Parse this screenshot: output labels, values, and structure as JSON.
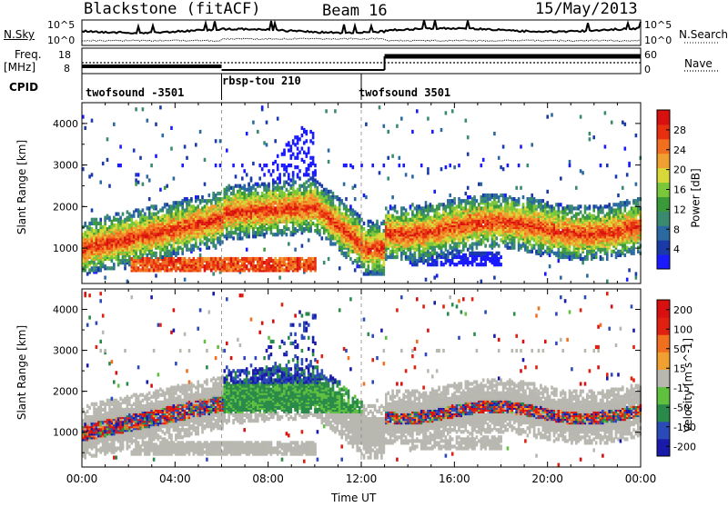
{
  "header": {
    "station": "Blackstone (fitACF)",
    "beam": "Beam 16",
    "date": "15/May/2013"
  },
  "noise_panel": {
    "left_label": "N.Sky",
    "right_label": "N.Search",
    "ticks": [
      "10^5",
      "10^0"
    ]
  },
  "freq_panel": {
    "freq_label": "Freq.",
    "freq_unit": "[MHz]",
    "left_ticks": [
      "18",
      "8"
    ],
    "right_ticks": [
      "60",
      "0"
    ],
    "nave_label": "Nave"
  },
  "cpid": {
    "label": "CPID",
    "segments": [
      {
        "name": "twofsound -3501",
        "start": "00:00"
      },
      {
        "name": "rbsp-tou 210",
        "start": "06:00"
      },
      {
        "name": "twofsound 3501",
        "start": "12:00"
      }
    ]
  },
  "chart_data": [
    {
      "type": "heatmap",
      "title": "",
      "xlabel": "",
      "ylabel": "Slant Range [km]",
      "y_ticks": [
        "1000",
        "2000",
        "3000",
        "4000"
      ],
      "ylim": [
        150,
        4500
      ],
      "colorbar": {
        "label": "Power [dB]",
        "ticks": [
          "4",
          "8",
          "12",
          "16",
          "20",
          "24",
          "28"
        ],
        "colors": [
          "#1a1aff",
          "#1a3aa8",
          "#2a6aa0",
          "#3a8a70",
          "#3a9a3a",
          "#7ac83a",
          "#d8d838",
          "#f0a030",
          "#f07020",
          "#e83010",
          "#d81010"
        ]
      },
      "features": [
        {
          "desc": "Main band",
          "time": [
            "00:00",
            "06:00"
          ],
          "range_km": [
            1000,
            1900
          ],
          "power_db": [
            16,
            28
          ]
        },
        {
          "desc": "Upper arc",
          "time": [
            "06:00",
            "12:00"
          ],
          "range_km": [
            1800,
            2000
          ],
          "power_db": [
            16,
            28
          ]
        },
        {
          "desc": "Descending echo",
          "time": [
            "10:00",
            "12:00"
          ],
          "range_km": [
            1800,
            900
          ],
          "power_db": [
            20,
            30
          ]
        },
        {
          "desc": "Band",
          "time": [
            "12:00",
            "24:00"
          ],
          "range_km": [
            1300,
            1700
          ],
          "power_db": [
            16,
            28
          ]
        },
        {
          "desc": "Near range",
          "time": [
            "02:00",
            "10:00"
          ],
          "range_km": [
            500,
            700
          ],
          "power_db": [
            20,
            30
          ]
        }
      ]
    },
    {
      "type": "heatmap",
      "title": "",
      "xlabel": "Time UT",
      "ylabel": "Slant Range [km]",
      "x_ticks": [
        "00:00",
        "04:00",
        "08:00",
        "12:00",
        "16:00",
        "20:00",
        "00:00"
      ],
      "y_ticks": [
        "1000",
        "2000",
        "3000",
        "4000"
      ],
      "ylim": [
        150,
        4500
      ],
      "colorbar": {
        "label": "Velocity [m s^-1]",
        "ticks": [
          "200",
          "100",
          "50",
          "15",
          "-15",
          "-50",
          "-100",
          "-200"
        ],
        "colors": [
          "#1a1aaa",
          "#2a4ab8",
          "#2a8a4a",
          "#60c040",
          "#b8b8b0",
          "#f0a030",
          "#f07020",
          "#e02010",
          "#d81010"
        ]
      },
      "features": [
        {
          "desc": "Ground scatter band",
          "time": [
            "00:00",
            "24:00"
          ],
          "range_km": [
            600,
            2000
          ],
          "velocity_ms": [
            -15,
            15
          ]
        },
        {
          "desc": "Ionospheric scatter",
          "time": [
            "00:00",
            "06:00"
          ],
          "range_km": [
            800,
            1200
          ],
          "velocity_ms": [
            -200,
            200
          ]
        },
        {
          "desc": "Ionospheric scatter",
          "time": [
            "12:00",
            "24:00"
          ],
          "range_km": [
            1000,
            1400
          ],
          "velocity_ms": [
            -200,
            200
          ]
        }
      ]
    }
  ]
}
